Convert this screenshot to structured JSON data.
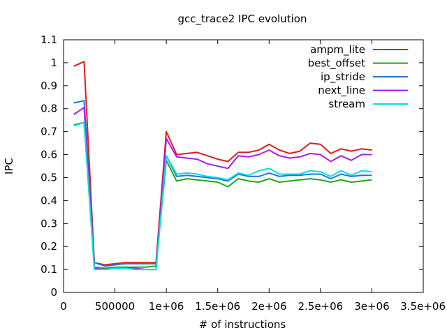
{
  "chart_data": {
    "type": "line",
    "title": "gcc_trace2 IPC evolution",
    "xlabel": "# of instructions",
    "ylabel": "IPC",
    "xlim": [
      0,
      3500000
    ],
    "ylim": [
      0,
      1.1
    ],
    "xticks": [
      0,
      500000,
      1000000,
      1500000,
      2000000,
      2500000,
      3000000,
      3500000
    ],
    "xtick_labels": [
      "0",
      "500000",
      "1e+06",
      "1.5e+06",
      "2e+06",
      "2.5e+06",
      "3e+06",
      "3.5e+06"
    ],
    "yticks": [
      0,
      0.1,
      0.2,
      0.3,
      0.4,
      0.5,
      0.6,
      0.7,
      0.8,
      0.9,
      1,
      1.1
    ],
    "ytick_labels": [
      "0",
      "0.1",
      "0.2",
      "0.3",
      "0.4",
      "0.5",
      "0.6",
      "0.7",
      "0.8",
      "0.9",
      "1",
      "1.1"
    ],
    "grid": false,
    "legend_position": "top-right",
    "x": [
      100000,
      200000,
      300000,
      400000,
      500000,
      600000,
      700000,
      800000,
      900000,
      1000000,
      1100000,
      1200000,
      1300000,
      1400000,
      1500000,
      1600000,
      1700000,
      1800000,
      1900000,
      2000000,
      2100000,
      2200000,
      2300000,
      2400000,
      2500000,
      2600000,
      2700000,
      2800000,
      2900000,
      3000000
    ],
    "series": [
      {
        "name": "ampm_lite",
        "color": "#e41a1c",
        "values": [
          0.985,
          1.005,
          0.13,
          0.12,
          0.125,
          0.13,
          0.13,
          0.13,
          0.13,
          0.7,
          0.6,
          0.605,
          0.61,
          0.595,
          0.58,
          0.57,
          0.61,
          0.61,
          0.62,
          0.645,
          0.62,
          0.605,
          0.615,
          0.65,
          0.645,
          0.605,
          0.625,
          0.615,
          0.625,
          0.62
        ]
      },
      {
        "name": "best_offset",
        "color": "#1aaa1a",
        "values": [
          0.73,
          0.74,
          0.11,
          0.105,
          0.11,
          0.11,
          0.11,
          0.11,
          0.115,
          0.575,
          0.485,
          0.495,
          0.49,
          0.485,
          0.48,
          0.46,
          0.495,
          0.485,
          0.48,
          0.495,
          0.48,
          0.485,
          0.49,
          0.495,
          0.49,
          0.48,
          0.49,
          0.48,
          0.485,
          0.49
        ]
      },
      {
        "name": "ip_stride",
        "color": "#1f77d4",
        "values": [
          0.825,
          0.835,
          0.13,
          0.115,
          0.12,
          0.125,
          0.125,
          0.125,
          0.125,
          0.595,
          0.505,
          0.51,
          0.505,
          0.5,
          0.495,
          0.485,
          0.515,
          0.505,
          0.505,
          0.52,
          0.505,
          0.51,
          0.51,
          0.515,
          0.515,
          0.495,
          0.515,
          0.505,
          0.51,
          0.51
        ]
      },
      {
        "name": "next_line",
        "color": "#a020f0",
        "values": [
          0.775,
          0.805,
          0.105,
          0.1,
          0.105,
          0.105,
          0.105,
          0.1,
          0.1,
          0.67,
          0.59,
          0.585,
          0.58,
          0.56,
          0.55,
          0.54,
          0.595,
          0.59,
          0.6,
          0.62,
          0.595,
          0.585,
          0.59,
          0.605,
          0.6,
          0.57,
          0.595,
          0.575,
          0.6,
          0.6
        ]
      },
      {
        "name": "stream",
        "color": "#00e0e0",
        "values": [
          0.725,
          0.74,
          0.1,
          0.1,
          0.105,
          0.105,
          0.1,
          0.1,
          0.1,
          0.595,
          0.515,
          0.52,
          0.515,
          0.505,
          0.5,
          0.49,
          0.52,
          0.51,
          0.53,
          0.54,
          0.515,
          0.515,
          0.515,
          0.53,
          0.525,
          0.505,
          0.53,
          0.51,
          0.53,
          0.525
        ]
      }
    ]
  }
}
